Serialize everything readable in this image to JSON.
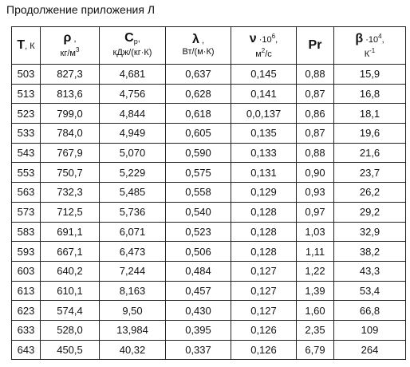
{
  "title": "Продолжение приложения Л",
  "table": {
    "header": [
      [
        [
          "T",
          ", К"
        ]
      ],
      [
        [
          "ρ",
          " ,"
        ],
        [
          "кг/м",
          "3"
        ]
      ],
      [
        [
          "C",
          "p",
          ","
        ],
        [
          "кДж/(кг·К)"
        ]
      ],
      [
        [
          "λ",
          " ,"
        ],
        [
          "Вт/(м·К)"
        ]
      ],
      [
        [
          "ν",
          " ·10",
          "6",
          ","
        ],
        [
          "м",
          "2",
          "/с"
        ]
      ],
      [
        [
          "Pr"
        ]
      ],
      [
        [
          "β",
          " ·10",
          "4",
          ","
        ],
        [
          "К",
          "-1"
        ]
      ]
    ],
    "rows": [
      [
        "503",
        "827,3",
        "4,681",
        "0,637",
        "0,145",
        "0,88",
        "15,9"
      ],
      [
        "513",
        "813,6",
        "4,756",
        "0,628",
        "0,141",
        "0,87",
        "16,8"
      ],
      [
        "523",
        "799,0",
        "4,844",
        "0,618",
        "0,0,137",
        "0,86",
        "18,1"
      ],
      [
        "533",
        "784,0",
        "4,949",
        "0,605",
        "0,135",
        "0,87",
        "19,6"
      ],
      [
        "543",
        "767,9",
        "5,070",
        "0,590",
        "0,133",
        "0,88",
        "21,6"
      ],
      [
        "553",
        "750,7",
        "5,229",
        "0,575",
        "0,131",
        "0,90",
        "23,7"
      ],
      [
        "563",
        "732,3",
        "5,485",
        "0,558",
        "0,129",
        "0,93",
        "26,2"
      ],
      [
        "573",
        "712,5",
        "5,736",
        "0,540",
        "0,128",
        "0,97",
        "29,2"
      ],
      [
        "583",
        "691,1",
        "6,071",
        "0,523",
        "0,128",
        "1,03",
        "32,9"
      ],
      [
        "593",
        "667,1",
        "6,473",
        "0,506",
        "0,128",
        "1,11",
        "38,2"
      ],
      [
        "603",
        "640,2",
        "7,244",
        "0,484",
        "0,127",
        "1,22",
        "43,3"
      ],
      [
        "613",
        "610,1",
        "8,163",
        "0,457",
        "0,127",
        "1,39",
        "53,4"
      ],
      [
        "623",
        "574,4",
        "9,50",
        "0,430",
        "0,127",
        "1,60",
        "66,8"
      ],
      [
        "633",
        "528,0",
        "13,984",
        "0,395",
        "0,126",
        "2,35",
        "109"
      ],
      [
        "643",
        "450,5",
        "40,32",
        "0,337",
        "0,126",
        "6,79",
        "264"
      ]
    ]
  }
}
